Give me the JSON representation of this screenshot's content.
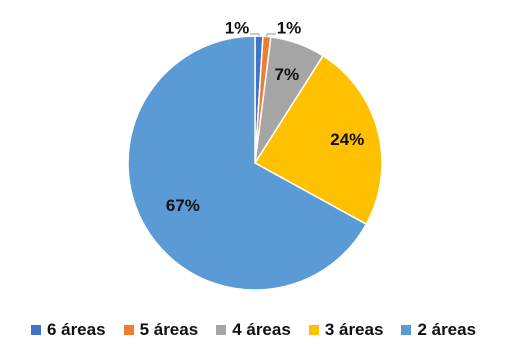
{
  "chart_data": {
    "type": "pie",
    "title": "",
    "legend_position": "bottom",
    "slices": [
      {
        "name": "6 áreas",
        "value": 1,
        "label": "1%",
        "color": "#4472C4"
      },
      {
        "name": "5 áreas",
        "value": 1,
        "label": "1%",
        "color": "#ED7D31"
      },
      {
        "name": "4 áreas",
        "value": 7,
        "label": "7%",
        "color": "#A5A5A5"
      },
      {
        "name": "3 áreas",
        "value": 24,
        "label": "24%",
        "color": "#FFC000"
      },
      {
        "name": "2 áreas",
        "value": 67,
        "label": "67%",
        "color": "#5B9BD5"
      }
    ]
  }
}
